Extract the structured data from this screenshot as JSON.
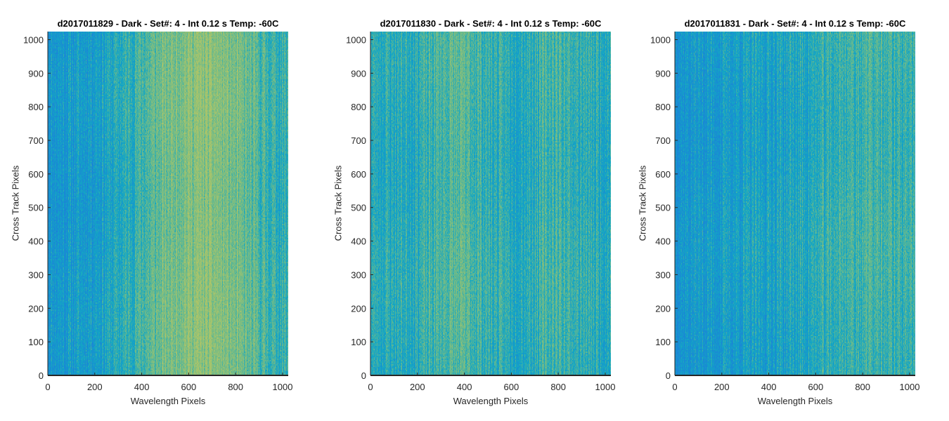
{
  "chart_data": [
    {
      "type": "heatmap",
      "title": "d2017011829 - Dark - Set#: 4 - Int 0.12 s Temp: -60C",
      "xlabel": "Wavelength Pixels",
      "ylabel": "Cross Track Pixels",
      "xlim": [
        0,
        1024
      ],
      "ylim": [
        0,
        1024
      ],
      "xticks": [
        "0",
        "200",
        "400",
        "600",
        "800",
        "1000"
      ],
      "yticks": [
        "0",
        "100",
        "200",
        "300",
        "400",
        "500",
        "600",
        "700",
        "800",
        "900",
        "1000"
      ],
      "colormap": "parula",
      "pattern": "bluer on left (0-300), greener band around 450-900"
    },
    {
      "type": "heatmap",
      "title": "d2017011830 - Dark - Set#: 4 - Int 0.12 s Temp: -60C",
      "xlabel": "Wavelength Pixels",
      "ylabel": "Cross Track Pixels",
      "xlim": [
        0,
        1024
      ],
      "ylim": [
        0,
        1024
      ],
      "xticks": [
        "0",
        "200",
        "400",
        "600",
        "800",
        "1000"
      ],
      "yticks": [
        "0",
        "100",
        "200",
        "300",
        "400",
        "500",
        "600",
        "700",
        "800",
        "900",
        "1000"
      ],
      "colormap": "parula",
      "pattern": "mostly cyan-green, slightly greener around 300-450 and 750-850"
    },
    {
      "type": "heatmap",
      "title": "d2017011831 - Dark - Set#: 4 - Int 0.12 s Temp: -60C",
      "xlabel": "Wavelength Pixels",
      "ylabel": "Cross Track Pixels",
      "xlim": [
        0,
        1024
      ],
      "ylim": [
        0,
        1024
      ],
      "xticks": [
        "0",
        "200",
        "400",
        "600",
        "800",
        "1000"
      ],
      "yticks": [
        "0",
        "100",
        "200",
        "300",
        "400",
        "500",
        "600",
        "700",
        "800",
        "900",
        "1000"
      ],
      "colormap": "parula",
      "pattern": "bluer on left (0-300), slightly greener toward 700-1000"
    }
  ],
  "colors": {
    "axis": "#262626",
    "blue": "#1a86d6",
    "cyan": "#13a6c4",
    "green": "#6cba8a",
    "yellowgreen": "#a9c46a"
  }
}
